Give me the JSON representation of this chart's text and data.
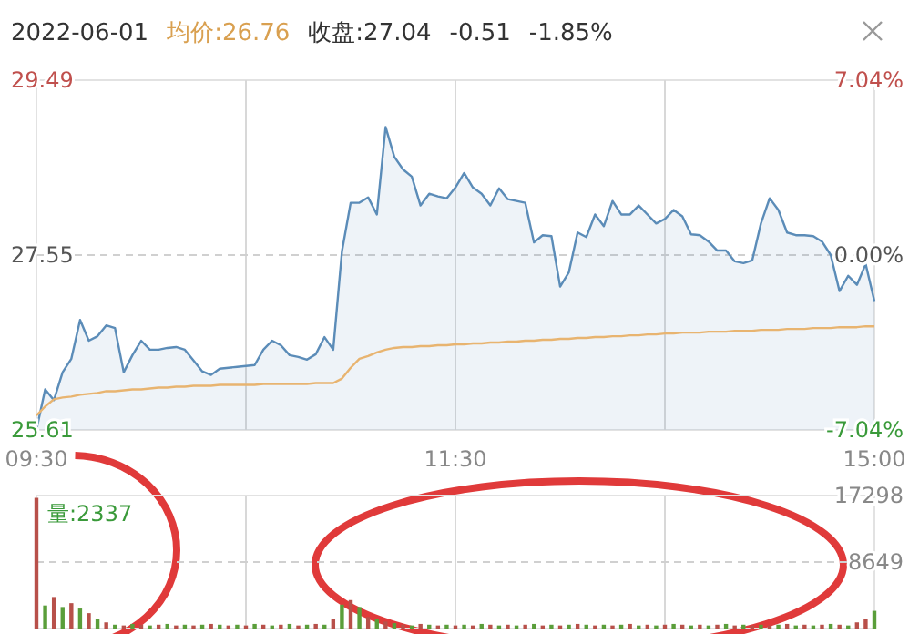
{
  "chart_data": [
    {
      "type": "area",
      "categories": [
        "09:30",
        null,
        null,
        null,
        null,
        null,
        null,
        null,
        null,
        null,
        null,
        null,
        null,
        null,
        null,
        null,
        null,
        null,
        null,
        null,
        null,
        null,
        null,
        null,
        null,
        null,
        null,
        null,
        null,
        null,
        null,
        null,
        null,
        null,
        null,
        null,
        null,
        null,
        null,
        null,
        null,
        null,
        null,
        null,
        null,
        null,
        null,
        null,
        "11:30",
        null,
        null,
        null,
        null,
        null,
        null,
        null,
        null,
        null,
        null,
        null,
        null,
        null,
        null,
        null,
        null,
        null,
        null,
        null,
        null,
        null,
        null,
        null,
        null,
        null,
        null,
        null,
        null,
        null,
        null,
        null,
        null,
        null,
        null,
        null,
        null,
        null,
        null,
        null,
        null,
        null,
        null,
        null,
        null,
        null,
        null,
        null,
        "15:00"
      ],
      "ylim": [
        25.61,
        29.49
      ],
      "yticks": [
        29.49,
        27.55,
        25.61
      ],
      "y2lim": [
        -7.04,
        7.04
      ],
      "y2ticks": [
        {
          "value": 7.04,
          "label": "7.04%"
        },
        {
          "value": 0,
          "label": "0.00%"
        },
        {
          "value": -7.04,
          "label": "-7.04%"
        }
      ],
      "grid": "x",
      "ref_lines": [
        {
          "axis": "y",
          "value": 27.55,
          "color": "#d0d0d0",
          "line_style": "dashed"
        }
      ],
      "annotations": [
        "2022-06-01",
        "均价:26.76",
        "收盘:27.04",
        "-0.51",
        "-1.85%"
      ],
      "series": [
        {
          "type": "area",
          "color": "#5b8cb8",
          "values": [
            25.61,
            26.06,
            25.94,
            26.25,
            26.4,
            26.83,
            26.6,
            26.65,
            26.77,
            26.74,
            26.25,
            26.44,
            26.6,
            26.5,
            26.5,
            26.52,
            26.53,
            26.5,
            26.38,
            26.26,
            26.22,
            26.29,
            26.3,
            26.31,
            26.32,
            26.33,
            26.5,
            26.6,
            26.55,
            26.44,
            26.42,
            26.39,
            26.45,
            26.64,
            26.5,
            27.59,
            28.13,
            28.13,
            28.19,
            28.0,
            28.97,
            28.64,
            28.5,
            28.42,
            28.1,
            28.23,
            28.2,
            28.18,
            28.3,
            28.46,
            28.3,
            28.23,
            28.1,
            28.29,
            28.17,
            28.15,
            28.13,
            27.69,
            27.77,
            27.76,
            27.2,
            27.36,
            27.8,
            27.75,
            28.0,
            27.87,
            28.15,
            28.0,
            28.0,
            28.1,
            28.0,
            27.9,
            27.95,
            28.05,
            27.98,
            27.78,
            27.77,
            27.7,
            27.6,
            27.6,
            27.48,
            27.46,
            27.49,
            27.9,
            28.18,
            28.05,
            27.8,
            27.77,
            27.77,
            27.76,
            27.7,
            27.55,
            27.15,
            27.32,
            27.22,
            27.45,
            27.04
          ]
        },
        {
          "type": "line",
          "color": "#e8b470",
          "values": [
            25.77,
            25.87,
            25.95,
            25.97,
            25.98,
            26.0,
            26.01,
            26.02,
            26.04,
            26.04,
            26.05,
            26.06,
            26.06,
            26.07,
            26.08,
            26.08,
            26.09,
            26.09,
            26.1,
            26.1,
            26.1,
            26.11,
            26.11,
            26.11,
            26.11,
            26.11,
            26.12,
            26.12,
            26.12,
            26.12,
            26.12,
            26.12,
            26.13,
            26.13,
            26.13,
            26.18,
            26.3,
            26.4,
            26.43,
            26.47,
            26.5,
            26.52,
            26.53,
            26.53,
            26.54,
            26.54,
            26.55,
            26.55,
            26.56,
            26.56,
            26.57,
            26.57,
            26.58,
            26.58,
            26.59,
            26.59,
            26.6,
            26.6,
            26.61,
            26.61,
            26.62,
            26.62,
            26.63,
            26.63,
            26.64,
            26.64,
            26.65,
            26.65,
            26.66,
            26.66,
            26.67,
            26.67,
            26.68,
            26.68,
            26.69,
            26.69,
            26.69,
            26.7,
            26.7,
            26.7,
            26.71,
            26.71,
            26.71,
            26.72,
            26.72,
            26.72,
            26.73,
            26.73,
            26.73,
            26.74,
            26.74,
            26.74,
            26.75,
            26.75,
            26.75,
            26.76,
            26.76
          ]
        }
      ]
    },
    {
      "type": "bar",
      "categories": [
        null,
        null,
        null,
        null,
        null,
        null,
        null,
        null,
        null,
        null,
        null,
        null,
        null,
        null,
        null,
        null,
        null,
        null,
        null,
        null,
        null,
        null,
        null,
        null,
        null,
        null,
        null,
        null,
        null,
        null,
        null,
        null,
        null,
        null,
        null,
        null,
        null,
        null,
        null,
        null,
        null,
        null,
        null,
        null,
        null,
        null,
        null,
        null,
        null,
        null,
        null,
        null,
        null,
        null,
        null,
        null,
        null,
        null,
        null,
        null,
        null,
        null,
        null,
        null,
        null,
        null,
        null,
        null,
        null,
        null,
        null,
        null,
        null,
        null,
        null,
        null,
        null,
        null,
        null,
        null,
        null,
        null,
        null,
        null,
        null,
        null,
        null,
        null,
        null,
        null,
        null,
        null,
        null,
        null,
        null,
        null,
        null
      ],
      "ylim": [
        0,
        17298
      ],
      "yticks": [
        8649,
        17298
      ],
      "tick_labels": "y",
      "grid": "x",
      "ref_lines": [
        {
          "axis": "y",
          "value": 8649,
          "color": "#d0d0d0",
          "line_style": "dashed"
        }
      ],
      "annotations": [
        "量:2337"
      ],
      "values": [
        17000,
        3000,
        4100,
        2800,
        3300,
        2600,
        2000,
        1300,
        800,
        500,
        400,
        600,
        500,
        400,
        500,
        600,
        400,
        500,
        400,
        500,
        600,
        500,
        400,
        500,
        400,
        600,
        500,
        400,
        500,
        600,
        400,
        500,
        600,
        500,
        1200,
        3100,
        3700,
        2800,
        1500,
        1200,
        900,
        700,
        500,
        400,
        600,
        500,
        400,
        500,
        400,
        500,
        400,
        600,
        500,
        400,
        500,
        400,
        500,
        600,
        400,
        500,
        400,
        500,
        600,
        500,
        400,
        500,
        400,
        500,
        600,
        400,
        500,
        400,
        500,
        600,
        500,
        400,
        500,
        400,
        500,
        600,
        400,
        500,
        400,
        500,
        400,
        500,
        600,
        400,
        500,
        400,
        500,
        600,
        500,
        400,
        800,
        1200,
        2300
      ],
      "colors": [
        "#b8504a",
        "#5a9e3a",
        "#b8504a",
        "#5a9e3a",
        "#b8504a",
        "#5a9e3a",
        "#b8504a",
        "#5a9e3a",
        "#b8504a",
        "#5a9e3a",
        "#b8504a",
        "#5a9e3a",
        "#b8504a",
        "#5a9e3a",
        "#b8504a",
        "#5a9e3a",
        "#b8504a",
        "#5a9e3a",
        "#b8504a",
        "#5a9e3a",
        "#b8504a",
        "#5a9e3a",
        "#b8504a",
        "#5a9e3a",
        "#b8504a",
        "#5a9e3a",
        "#b8504a",
        "#5a9e3a",
        "#b8504a",
        "#5a9e3a",
        "#b8504a",
        "#5a9e3a",
        "#b8504a",
        "#5a9e3a",
        "#b8504a",
        "#5a9e3a",
        "#b8504a",
        "#5a9e3a",
        "#b8504a",
        "#5a9e3a",
        "#b8504a",
        "#5a9e3a",
        "#b8504a",
        "#5a9e3a",
        "#b8504a",
        "#5a9e3a",
        "#b8504a",
        "#5a9e3a",
        "#b8504a",
        "#5a9e3a",
        "#b8504a",
        "#5a9e3a",
        "#b8504a",
        "#5a9e3a",
        "#b8504a",
        "#5a9e3a",
        "#b8504a",
        "#5a9e3a",
        "#b8504a",
        "#5a9e3a",
        "#b8504a",
        "#5a9e3a",
        "#b8504a",
        "#5a9e3a",
        "#b8504a",
        "#5a9e3a",
        "#b8504a",
        "#5a9e3a",
        "#b8504a",
        "#5a9e3a",
        "#b8504a",
        "#5a9e3a",
        "#b8504a",
        "#5a9e3a",
        "#b8504a",
        "#5a9e3a",
        "#b8504a",
        "#5a9e3a",
        "#b8504a",
        "#5a9e3a",
        "#b8504a",
        "#5a9e3a",
        "#b8504a",
        "#5a9e3a",
        "#b8504a",
        "#5a9e3a",
        "#b8504a",
        "#5a9e3a",
        "#b8504a",
        "#5a9e3a",
        "#b8504a",
        "#5a9e3a",
        "#b8504a",
        "#5a9e3a",
        "#b8504a",
        "#b8504a",
        "#5a9e3a"
      ]
    }
  ]
}
